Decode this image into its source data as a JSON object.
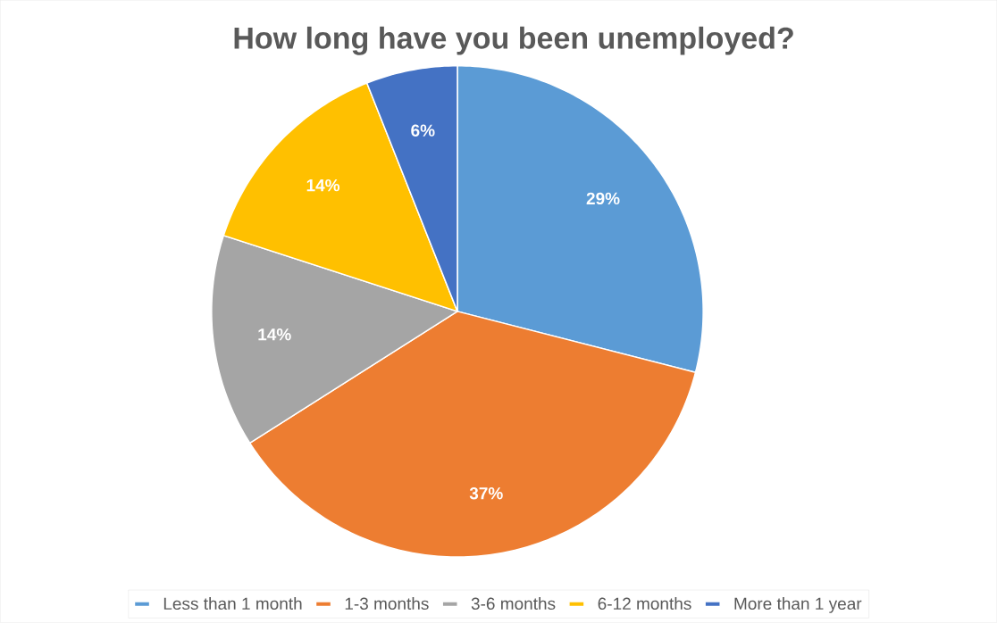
{
  "chart_data": {
    "type": "pie",
    "title": "How long have you been unemployed?",
    "categories": [
      "Less than 1 month",
      "1-3 months",
      "3-6 months",
      "6-12 months",
      "More than 1 year"
    ],
    "values": [
      29,
      37,
      14,
      14,
      6
    ],
    "colors": [
      "#5b9bd5",
      "#ed7d31",
      "#a5a5a5",
      "#ffc000",
      "#4472c4"
    ],
    "value_labels": [
      "29%",
      "37%",
      "14%",
      "14%",
      "6%"
    ],
    "legend": "bottom"
  }
}
